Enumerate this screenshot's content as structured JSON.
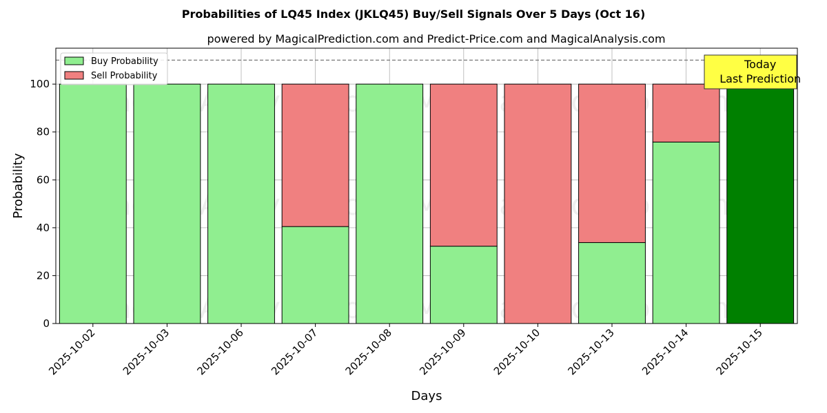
{
  "chart_data": {
    "type": "bar",
    "stacked": true,
    "title": "Probabilities of LQ45 Index (JKLQ45) Buy/Sell Signals Over 5 Days (Oct 16)",
    "subtitle": "powered by MagicalPrediction.com and Predict-Price.com and MagicalAnalysis.com",
    "xlabel": "Days",
    "ylabel": "Probability",
    "ylim": [
      0,
      115
    ],
    "yticks": [
      0,
      20,
      40,
      60,
      80,
      100
    ],
    "reference_line": 110,
    "grid": true,
    "legend_position": "top-left",
    "categories": [
      "2025-10-02",
      "2025-10-03",
      "2025-10-06",
      "2025-10-07",
      "2025-10-08",
      "2025-10-09",
      "2025-10-10",
      "2025-10-13",
      "2025-10-14",
      "2025-10-15"
    ],
    "series": [
      {
        "name": "Buy Probability",
        "color": "#90ee90",
        "values": [
          100,
          100,
          100,
          40.5,
          100,
          32.3,
          0,
          33.8,
          75.8,
          100
        ]
      },
      {
        "name": "Sell Probability",
        "color": "#f08080",
        "values": [
          0,
          0,
          0,
          59.5,
          0,
          67.7,
          100,
          66.2,
          24.2,
          0
        ]
      }
    ],
    "highlight": {
      "index": 9,
      "color": "#008000"
    },
    "annotation": {
      "lines": [
        "Today",
        "Last Prediction"
      ],
      "background": "#ffff44"
    },
    "watermarks": [
      "MagicalAnalysis.com",
      "MagicalPrediction.com"
    ]
  }
}
